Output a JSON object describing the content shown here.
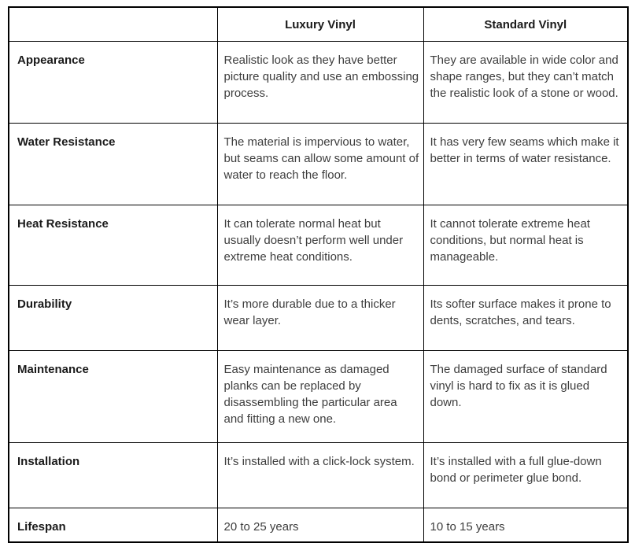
{
  "table": {
    "columns": [
      "",
      "Luxury Vinyl",
      "Standard Vinyl"
    ],
    "rows": [
      {
        "feature": "Appearance",
        "luxury": "Realistic look as they have better picture quality and use an embossing process.",
        "standard": "They are available in wide color and shape ranges, but they can’t match the realistic look of a stone or wood."
      },
      {
        "feature": "Water Resistance",
        "luxury": "The material is impervious to water, but seams can allow some amount of water to reach the floor.",
        "standard": "It has very few seams which make it better in terms of water resistance."
      },
      {
        "feature": "Heat Resistance",
        "luxury": "It can tolerate normal heat but usually doesn’t perform well under extreme heat conditions.",
        "standard": "It cannot tolerate extreme heat conditions, but normal heat is manageable."
      },
      {
        "feature": "Durability",
        "luxury": "It’s more durable due to a thicker wear layer.",
        "standard": "Its softer surface makes it prone to dents, scratches, and tears."
      },
      {
        "feature": "Maintenance",
        "luxury": "Easy maintenance as damaged planks can be replaced by disassembling the particular area and fitting a new one.",
        "standard": "The damaged surface of standard vinyl is hard to fix as it is glued down."
      },
      {
        "feature": "Installation",
        "luxury": "It’s installed with a click-lock system.",
        "standard": "It’s installed with a full glue-down bond or perimeter glue bond."
      },
      {
        "feature": "Lifespan",
        "luxury": "20 to 25 years",
        "standard": "10 to 15 years"
      }
    ]
  },
  "colors": {
    "border": "#000000",
    "label_text": "#1a1a1a",
    "body_text": "#3d3d3d",
    "background": "#ffffff"
  }
}
